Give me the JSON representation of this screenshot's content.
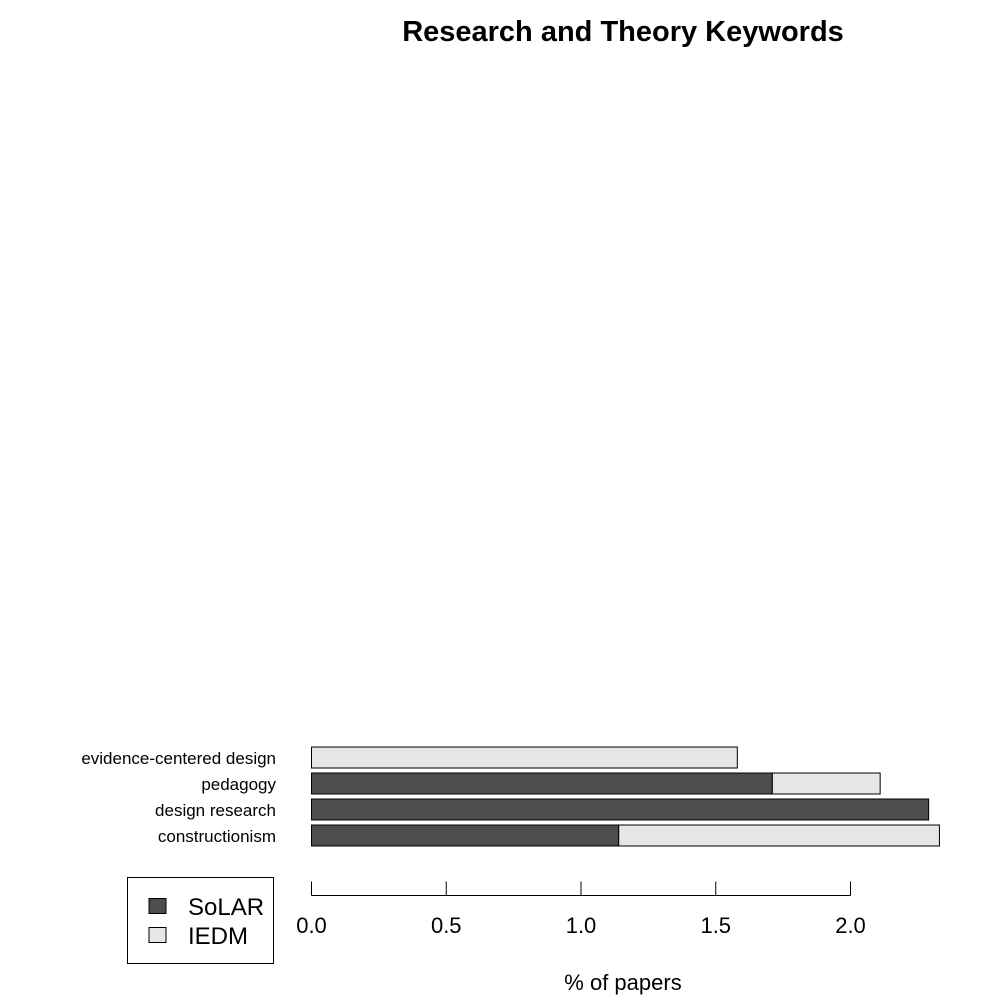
{
  "chart_data": {
    "type": "bar",
    "orientation": "horizontal",
    "stacked": true,
    "title": "Research and Theory Keywords",
    "xlabel": "% of papers",
    "ylabel": "",
    "xlim": [
      0,
      2.3333
    ],
    "x_ticks": [
      "0.0",
      "0.5",
      "1.0",
      "1.5",
      "2.0"
    ],
    "x_tick_values": [
      0,
      0.5,
      1.0,
      1.5,
      2.0
    ],
    "categories": [
      "evidence-centered design",
      "pedagogy",
      "design research",
      "constructionism"
    ],
    "series": [
      {
        "name": "SoLAR",
        "color": "#4d4d4d",
        "values": [
          0.0,
          1.71,
          2.29,
          1.14
        ]
      },
      {
        "name": "IEDM",
        "color": "#e6e6e6",
        "values": [
          1.58,
          0.4,
          0.0,
          1.19
        ]
      }
    ],
    "legend_position": "bottom-left",
    "grid": false
  }
}
